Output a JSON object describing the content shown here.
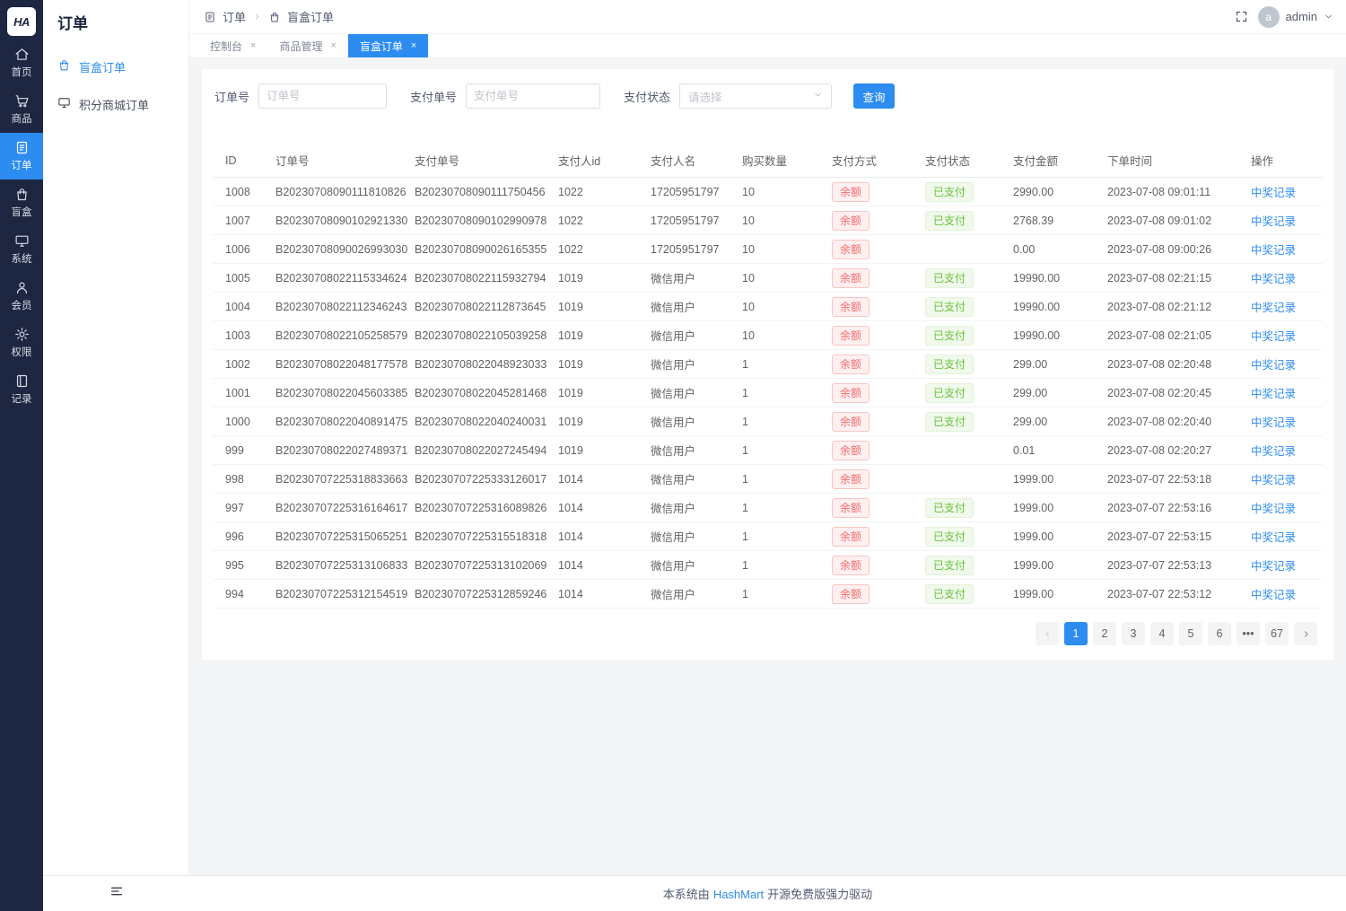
{
  "app": {
    "logo": "HA"
  },
  "colors": {
    "accent": "#2d8cf0",
    "sidebar_bg": "#1e2742",
    "badge_red": "#f56c6c",
    "badge_green": "#67c23a"
  },
  "sidebar": {
    "items": [
      {
        "label": "首页",
        "icon": "home",
        "active": false
      },
      {
        "label": "商品",
        "icon": "cart",
        "active": false
      },
      {
        "label": "订单",
        "icon": "order",
        "active": true
      },
      {
        "label": "盲盒",
        "icon": "box",
        "active": false
      },
      {
        "label": "系统",
        "icon": "monitor",
        "active": false
      },
      {
        "label": "会员",
        "icon": "user",
        "active": false
      },
      {
        "label": "权限",
        "icon": "gear",
        "active": false
      },
      {
        "label": "记录",
        "icon": "book",
        "active": false
      }
    ]
  },
  "submenu": {
    "title": "订单",
    "items": [
      {
        "label": "盲盒订单",
        "icon": "box",
        "active": true
      },
      {
        "label": "积分商城订单",
        "icon": "monitor",
        "active": false
      }
    ]
  },
  "header": {
    "breadcrumb": [
      "订单",
      "盲盒订单"
    ],
    "user": "admin",
    "avatar_letter": "a"
  },
  "tabs": [
    {
      "label": "控制台",
      "active": false
    },
    {
      "label": "商品管理",
      "active": false
    },
    {
      "label": "盲盒订单",
      "active": true
    }
  ],
  "filters": {
    "order_no_label": "订单号",
    "order_no_placeholder": "订单号",
    "order_no_value": "",
    "pay_no_label": "支付单号",
    "pay_no_placeholder": "支付单号",
    "pay_no_value": "",
    "pay_status_label": "支付状态",
    "pay_status_placeholder": "请选择",
    "search_label": "查询"
  },
  "table": {
    "columns": [
      "ID",
      "订单号",
      "支付单号",
      "支付人id",
      "支付人名",
      "购买数量",
      "支付方式",
      "支付状态",
      "支付金额",
      "下单时间",
      "操作"
    ],
    "action_label": "中奖记录",
    "rows": [
      {
        "id": "1008",
        "order_no": "B20230708090111810826",
        "pay_no": "B20230708090111750456",
        "payer_id": "1022",
        "payer_name": "17205951797",
        "qty": "10",
        "method": "余额",
        "status": "已支付",
        "amount": "2990.00",
        "time": "2023-07-08 09:01:11"
      },
      {
        "id": "1007",
        "order_no": "B20230708090102921330",
        "pay_no": "B20230708090102990978",
        "payer_id": "1022",
        "payer_name": "17205951797",
        "qty": "10",
        "method": "余额",
        "status": "已支付",
        "amount": "2768.39",
        "time": "2023-07-08 09:01:02"
      },
      {
        "id": "1006",
        "order_no": "B20230708090026993030",
        "pay_no": "B20230708090026165355",
        "payer_id": "1022",
        "payer_name": "17205951797",
        "qty": "10",
        "method": "余额",
        "status": "",
        "amount": "0.00",
        "time": "2023-07-08 09:00:26"
      },
      {
        "id": "1005",
        "order_no": "B20230708022115334624",
        "pay_no": "B20230708022115932794",
        "payer_id": "1019",
        "payer_name": "微信用户",
        "qty": "10",
        "method": "余额",
        "status": "已支付",
        "amount": "19990.00",
        "time": "2023-07-08 02:21:15"
      },
      {
        "id": "1004",
        "order_no": "B20230708022112346243",
        "pay_no": "B20230708022112873645",
        "payer_id": "1019",
        "payer_name": "微信用户",
        "qty": "10",
        "method": "余额",
        "status": "已支付",
        "amount": "19990.00",
        "time": "2023-07-08 02:21:12"
      },
      {
        "id": "1003",
        "order_no": "B20230708022105258579",
        "pay_no": "B20230708022105039258",
        "payer_id": "1019",
        "payer_name": "微信用户",
        "qty": "10",
        "method": "余额",
        "status": "已支付",
        "amount": "19990.00",
        "time": "2023-07-08 02:21:05"
      },
      {
        "id": "1002",
        "order_no": "B20230708022048177578",
        "pay_no": "B20230708022048923033",
        "payer_id": "1019",
        "payer_name": "微信用户",
        "qty": "1",
        "method": "余额",
        "status": "已支付",
        "amount": "299.00",
        "time": "2023-07-08 02:20:48"
      },
      {
        "id": "1001",
        "order_no": "B20230708022045603385",
        "pay_no": "B20230708022045281468",
        "payer_id": "1019",
        "payer_name": "微信用户",
        "qty": "1",
        "method": "余额",
        "status": "已支付",
        "amount": "299.00",
        "time": "2023-07-08 02:20:45"
      },
      {
        "id": "1000",
        "order_no": "B20230708022040891475",
        "pay_no": "B20230708022040240031",
        "payer_id": "1019",
        "payer_name": "微信用户",
        "qty": "1",
        "method": "余额",
        "status": "已支付",
        "amount": "299.00",
        "time": "2023-07-08 02:20:40"
      },
      {
        "id": "999",
        "order_no": "B20230708022027489371",
        "pay_no": "B20230708022027245494",
        "payer_id": "1019",
        "payer_name": "微信用户",
        "qty": "1",
        "method": "余额",
        "status": "",
        "amount": "0.01",
        "time": "2023-07-08 02:20:27"
      },
      {
        "id": "998",
        "order_no": "B20230707225318833663",
        "pay_no": "B20230707225333126017",
        "payer_id": "1014",
        "payer_name": "微信用户",
        "qty": "1",
        "method": "余额",
        "status": "",
        "amount": "1999.00",
        "time": "2023-07-07 22:53:18"
      },
      {
        "id": "997",
        "order_no": "B20230707225316164617",
        "pay_no": "B20230707225316089826",
        "payer_id": "1014",
        "payer_name": "微信用户",
        "qty": "1",
        "method": "余额",
        "status": "已支付",
        "amount": "1999.00",
        "time": "2023-07-07 22:53:16"
      },
      {
        "id": "996",
        "order_no": "B20230707225315065251",
        "pay_no": "B20230707225315518318",
        "payer_id": "1014",
        "payer_name": "微信用户",
        "qty": "1",
        "method": "余额",
        "status": "已支付",
        "amount": "1999.00",
        "time": "2023-07-07 22:53:15"
      },
      {
        "id": "995",
        "order_no": "B20230707225313106833",
        "pay_no": "B20230707225313102069",
        "payer_id": "1014",
        "payer_name": "微信用户",
        "qty": "1",
        "method": "余额",
        "status": "已支付",
        "amount": "1999.00",
        "time": "2023-07-07 22:53:13"
      },
      {
        "id": "994",
        "order_no": "B20230707225312154519",
        "pay_no": "B20230707225312859246",
        "payer_id": "1014",
        "payer_name": "微信用户",
        "qty": "1",
        "method": "余额",
        "status": "已支付",
        "amount": "1999.00",
        "time": "2023-07-07 22:53:12"
      }
    ]
  },
  "pagination": {
    "pages": [
      "1",
      "2",
      "3",
      "4",
      "5",
      "6",
      "•••",
      "67"
    ],
    "active_page": "1"
  },
  "footer": {
    "prefix": "本系统由",
    "link_label": "HashMart",
    "suffix": "开源免费版强力驱动"
  }
}
